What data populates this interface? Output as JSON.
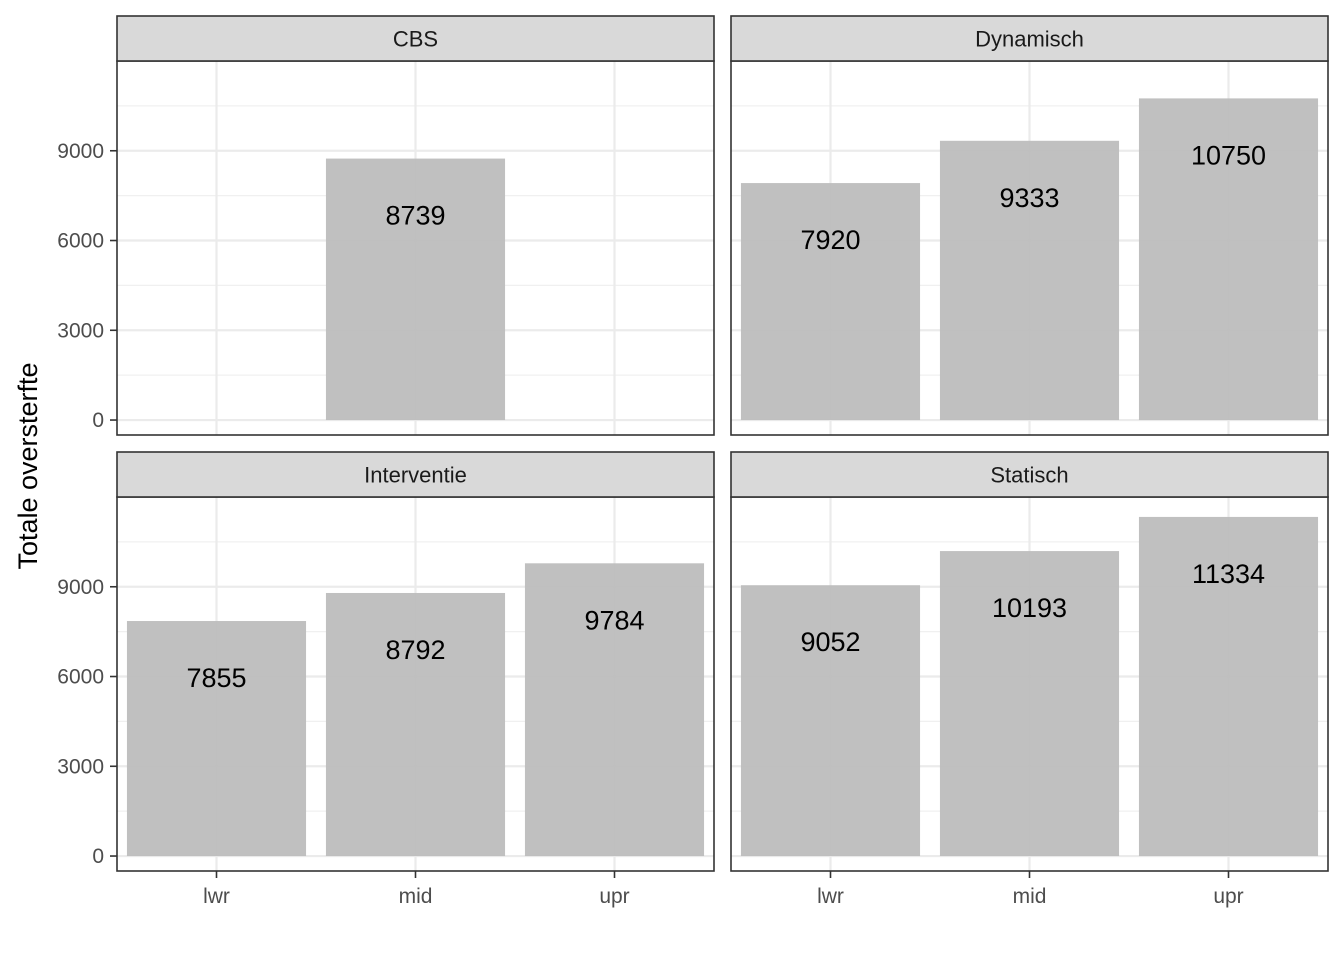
{
  "chart_data": {
    "type": "bar",
    "ylabel": "Totale oversterfte",
    "xlabel": "",
    "categories": [
      "lwr",
      "mid",
      "upr"
    ],
    "y_ticks": [
      0,
      3000,
      6000,
      9000
    ],
    "ylim": [
      -500,
      12000
    ],
    "grid": true,
    "bar_color": "#bdbdbd",
    "facets": [
      {
        "name": "CBS",
        "values": [
          null,
          8739,
          null
        ],
        "labels": [
          "",
          "8739",
          ""
        ]
      },
      {
        "name": "Dynamisch",
        "values": [
          7920,
          9333,
          10750
        ],
        "labels": [
          "7920",
          "9333",
          "10750"
        ]
      },
      {
        "name": "Interventie",
        "values": [
          7855,
          8792,
          9784
        ],
        "labels": [
          "7855",
          "8792",
          "9784"
        ]
      },
      {
        "name": "Statisch",
        "values": [
          9052,
          10193,
          11334
        ],
        "labels": [
          "9052",
          "10193",
          "11334"
        ]
      }
    ]
  }
}
